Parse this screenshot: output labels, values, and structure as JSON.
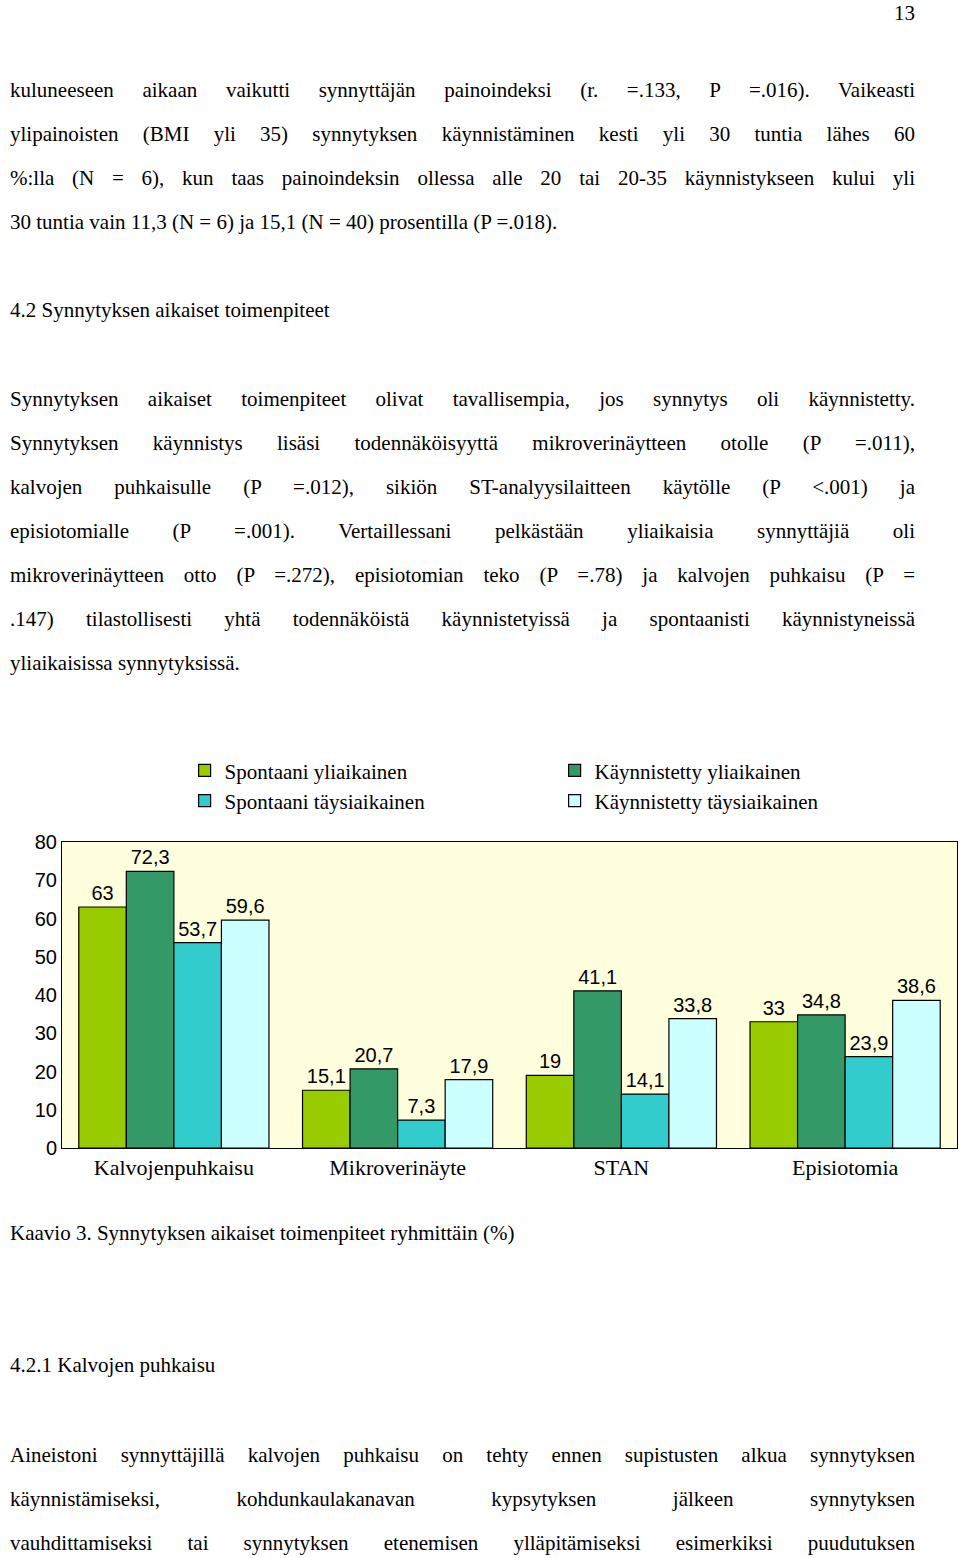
{
  "page_number": "13",
  "blocks": [
    {
      "type": "paragraph",
      "lines": [
        "kuluneeseen aikaan vaikutti synnyttäjän painoindeksi (r. =.133, P =.016). Vaikeasti",
        "ylipainoisten (BMI yli 35) synnytyksen käynnistäminen kesti yli 30 tuntia lähes 60",
        "%:lla (N = 6), kun taas painoindeksin ollessa alle 20 tai 20-35 käynnistykseen kului yli",
        "30 tuntia vain 11,3 (N = 6) ja 15,1 (N = 40) prosentilla (P =.018)."
      ]
    },
    {
      "type": "heading",
      "text": "4.2 Synnytyksen aikaiset toimenpiteet"
    },
    {
      "type": "paragraph",
      "lines": [
        "Synnytyksen aikaiset toimenpiteet olivat tavallisempia, jos synnytys oli käynnistetty.",
        "Synnytyksen käynnistys lisäsi todennäköisyyttä mikroverinäytteen otolle (P =.011),",
        "kalvojen puhkaisulle (P =.012), sikiön ST-analyysilaitteen käytölle (P <.001) ja",
        "episiotomialle (P =.001). Vertaillessani pelkästään yliaikaisia synnyttäjiä oli",
        "mikroverinäytteen otto (P =.272), episiotomian teko (P =.78) ja kalvojen puhkaisu (P =",
        ".147) tilastollisesti yhtä todennäköistä käynnistetyissä ja spontaanisti käynnistyneissä",
        "yliaikaisissa synnytyksissä."
      ]
    },
    {
      "type": "caption",
      "text": "Kaavio 3. Synnytyksen aikaiset toimenpiteet ryhmittäin (%)"
    },
    {
      "type": "heading",
      "text": "4.2.1 Kalvojen puhkaisu"
    },
    {
      "type": "paragraph",
      "lines": [
        "Aineistoni synnyttäjillä kalvojen puhkaisu on tehty ennen supistusten alkua synnytyksen",
        "käynnistämiseksi, kohdunkaulakanavan kypsytyksen jälkeen synnytyksen",
        "vauhdittamiseksi tai synnytyksen etenemisen ylläpitämiseksi esimerkiksi puudutuksen"
      ]
    }
  ],
  "chart_data": {
    "type": "bar",
    "categories": [
      "Kalvojenpuhkaisu",
      "Mikroverinäyte",
      "STAN",
      "Episiotomia"
    ],
    "series": [
      {
        "name": "Spontaani yliaikainen",
        "color": "#99cc00",
        "values": [
          63,
          15.1,
          19,
          33
        ],
        "value_labels": [
          "63",
          "15,1",
          "19",
          "33"
        ]
      },
      {
        "name": "Käynnistetty yliaikainen",
        "color": "#339966",
        "values": [
          72.3,
          20.7,
          41.1,
          34.8
        ],
        "value_labels": [
          "72,3",
          "20,7",
          "41,1",
          "34,8"
        ]
      },
      {
        "name": "Spontaani täysiaikainen",
        "color": "#33cccc",
        "values": [
          53.7,
          7.3,
          14.1,
          23.9
        ],
        "value_labels": [
          "53,7",
          "7,3",
          "14,1",
          "23,9"
        ]
      },
      {
        "name": "Käynnistetty täysiaikainen",
        "color": "#ccffff",
        "values": [
          59.6,
          17.9,
          33.8,
          38.6
        ],
        "value_labels": [
          "59,6",
          "17,9",
          "33,8",
          "38,6"
        ]
      }
    ],
    "ylim": [
      0,
      80
    ],
    "yticks": [
      0,
      10,
      20,
      30,
      40,
      50,
      60,
      70,
      80
    ],
    "grid": false,
    "legend": "top",
    "data_labels": true
  }
}
